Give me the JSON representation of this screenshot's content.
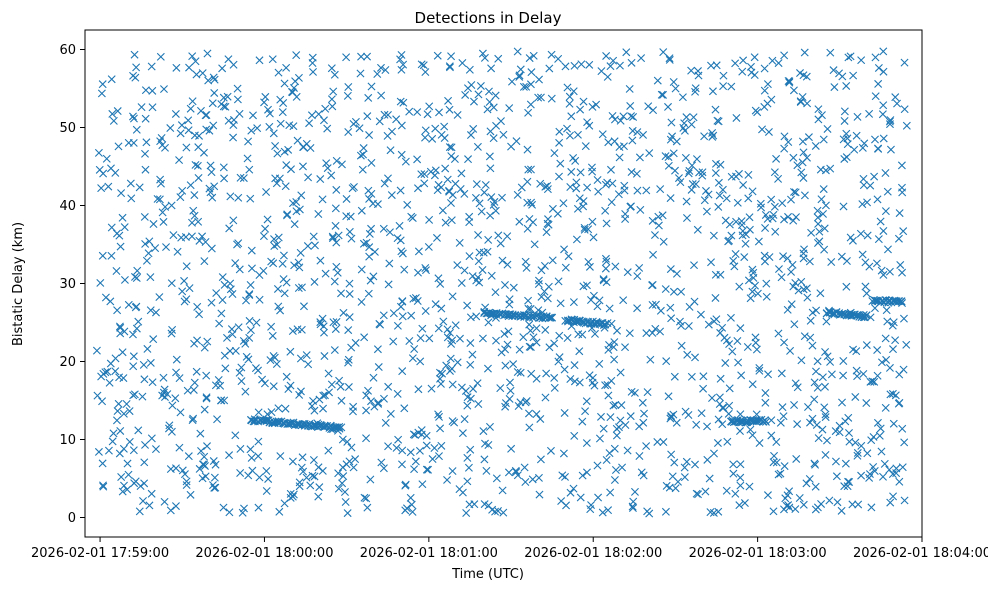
{
  "chart_data": {
    "type": "scatter",
    "title": "Detections in Delay",
    "xlabel": "Time (UTC)",
    "ylabel": "Bistatic Delay (km)",
    "x_unit": "seconds after 2026-02-01 17:59:00",
    "xlim": [
      -5.5,
      300
    ],
    "ylim": [
      -2.5,
      62.5
    ],
    "x_ticks": [
      {
        "value": 0,
        "label": "2026-02-01 17:59:00"
      },
      {
        "value": 60,
        "label": "2026-02-01 18:00:00"
      },
      {
        "value": 120,
        "label": "2026-02-01 18:01:00"
      },
      {
        "value": 180,
        "label": "2026-02-01 18:02:00"
      },
      {
        "value": 240,
        "label": "2026-02-01 18:03:00"
      },
      {
        "value": 300,
        "label": "2026-02-01 18:04:00"
      }
    ],
    "y_ticks": [
      {
        "value": 0,
        "label": "0"
      },
      {
        "value": 10,
        "label": "10"
      },
      {
        "value": 20,
        "label": "20"
      },
      {
        "value": 30,
        "label": "30"
      },
      {
        "value": 40,
        "label": "40"
      },
      {
        "value": 50,
        "label": "50"
      },
      {
        "value": 60,
        "label": "60"
      }
    ],
    "grid": false,
    "marker": "x",
    "series": [
      {
        "color": "#1f77b4",
        "x_range": [
          -1.5,
          294.5
        ],
        "y_range": [
          0.5,
          59.8
        ],
        "noise_points_approx": 1900,
        "tracks": [
          {
            "x_start": 55,
            "x_end": 78,
            "y_start": 12.5,
            "y_end": 11.8
          },
          {
            "x_start": 78,
            "x_end": 88,
            "y_start": 11.8,
            "y_end": 11.5
          },
          {
            "x_start": 140,
            "x_end": 165,
            "y_start": 26.2,
            "y_end": 25.6
          },
          {
            "x_start": 170,
            "x_end": 185,
            "y_start": 25.3,
            "y_end": 24.8
          },
          {
            "x_start": 265,
            "x_end": 280,
            "y_start": 26.3,
            "y_end": 25.8
          },
          {
            "x_start": 282,
            "x_end": 293,
            "y_start": 27.8,
            "y_end": 27.6
          },
          {
            "x_start": 230,
            "x_end": 243,
            "y_start": 12.3,
            "y_end": 12.4
          }
        ]
      }
    ]
  }
}
